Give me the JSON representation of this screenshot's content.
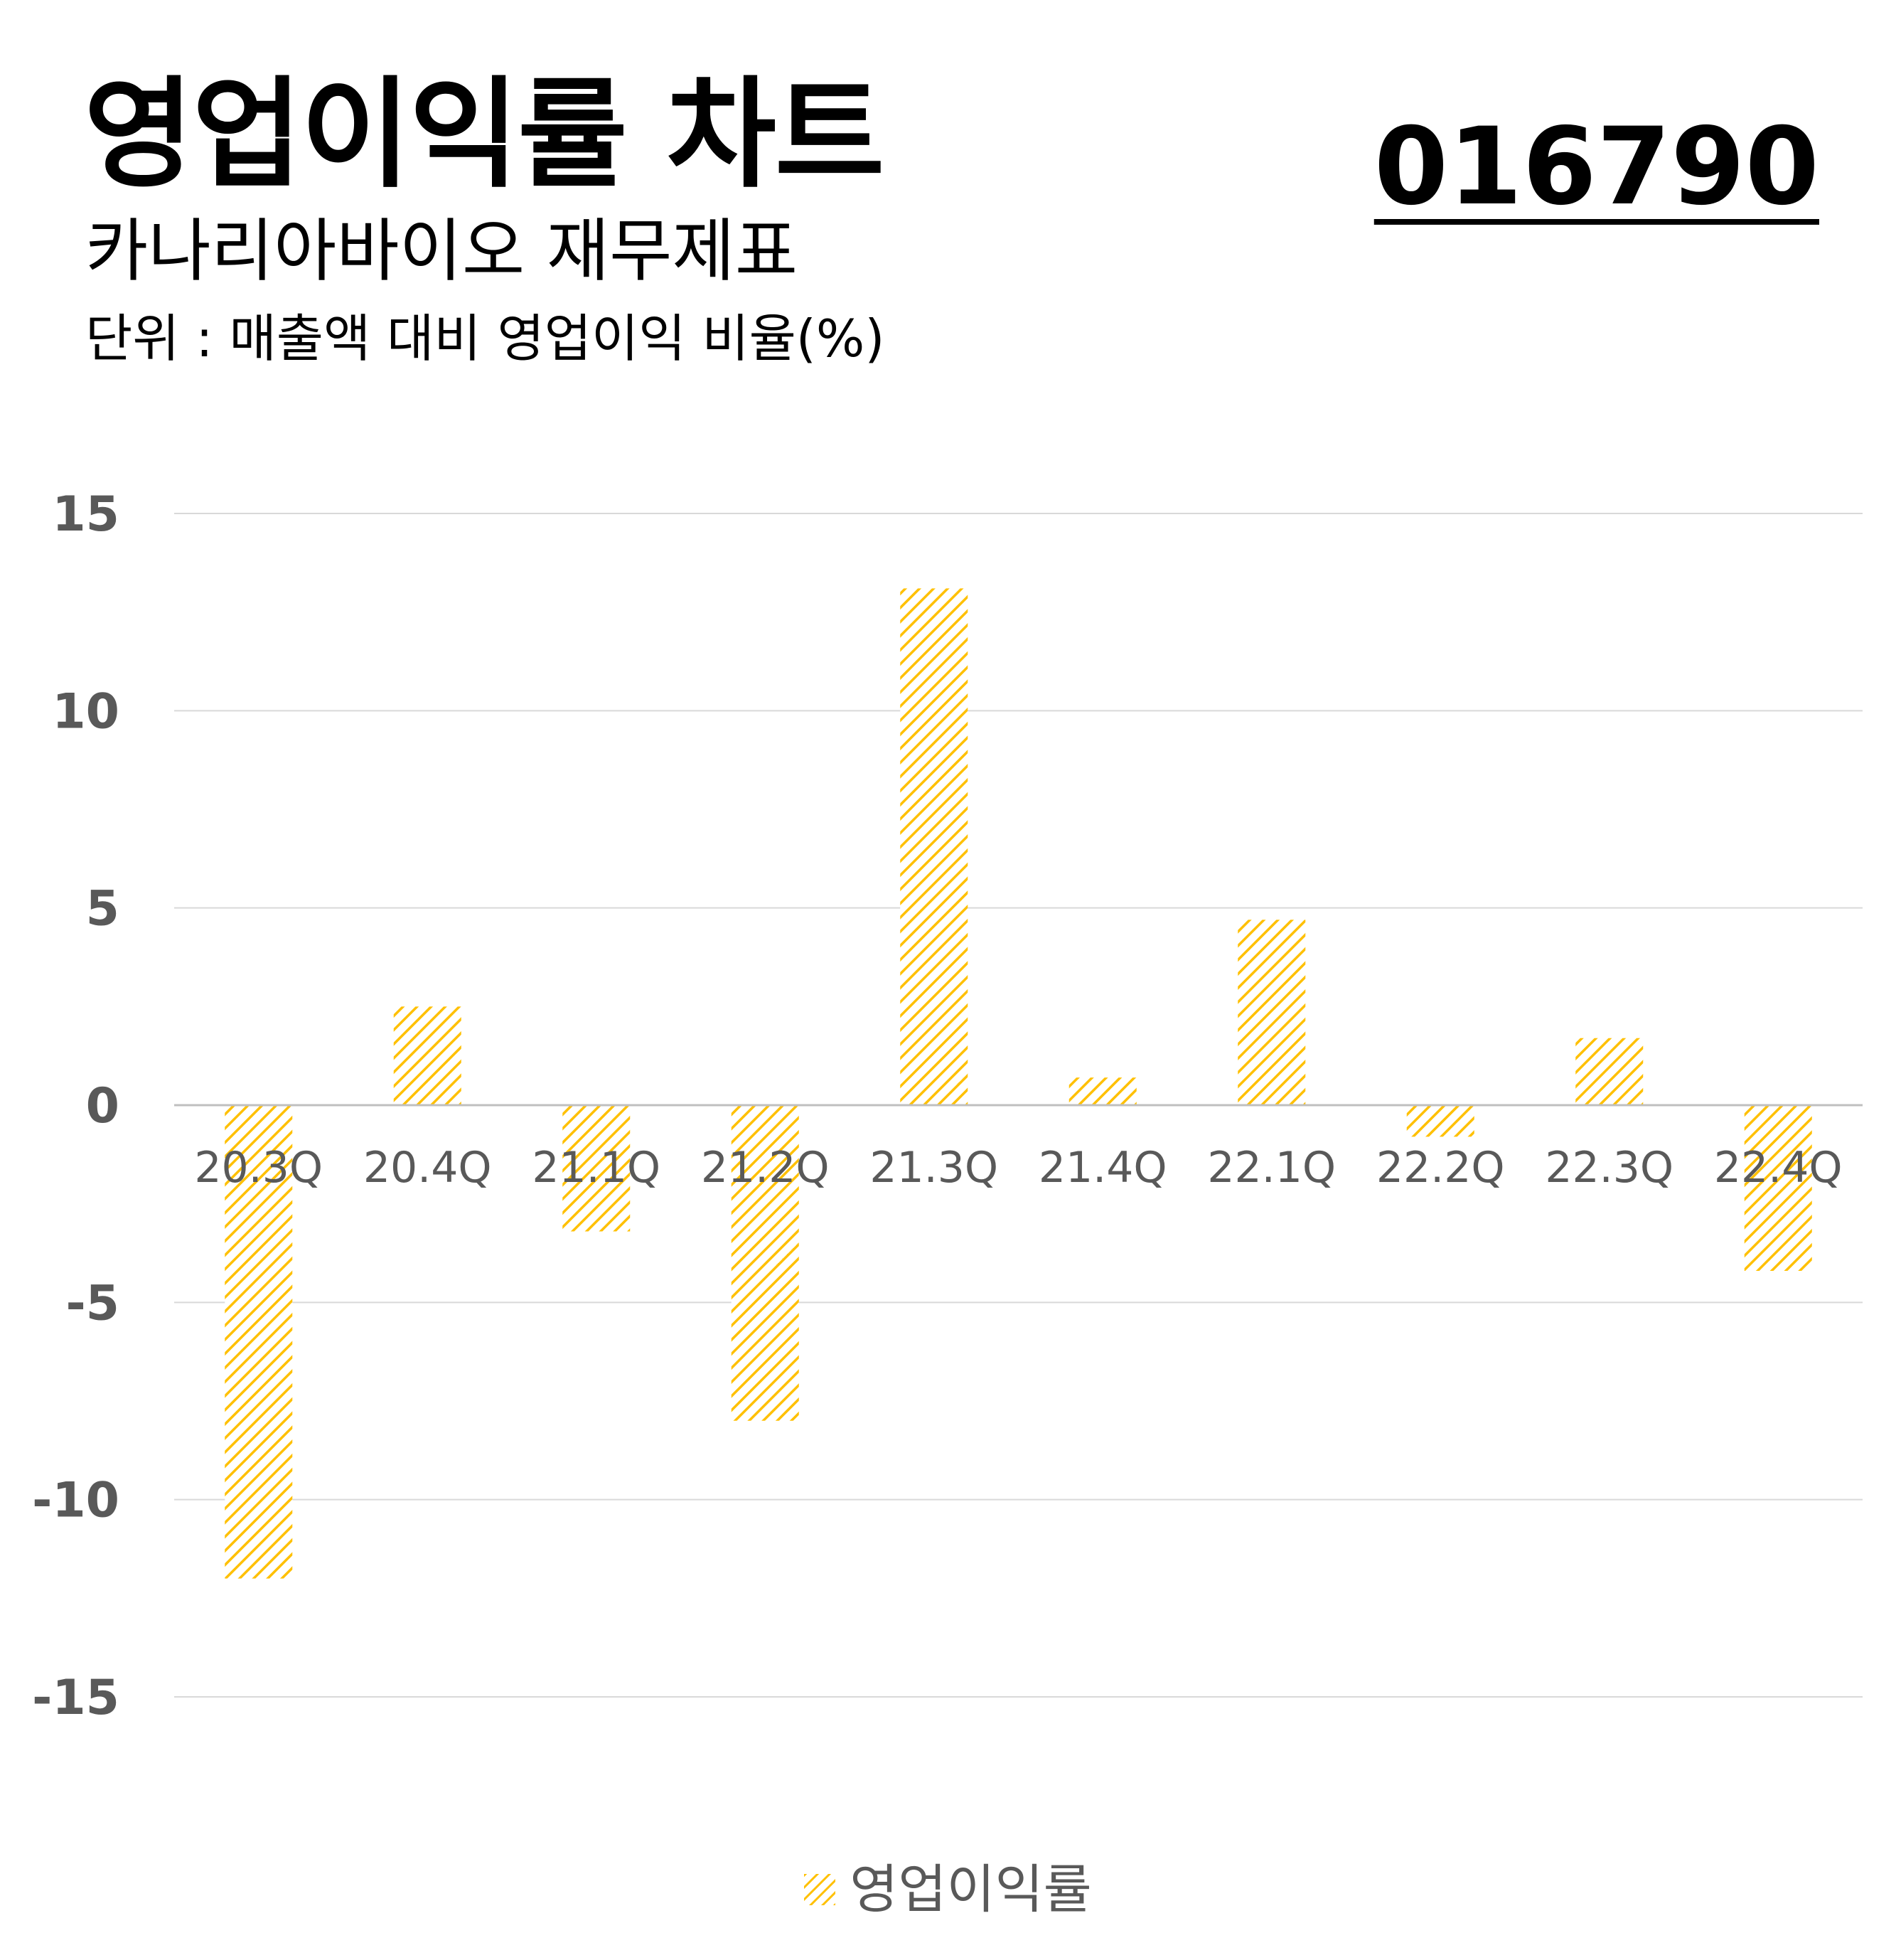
{
  "header": {
    "title": "영업이익률 차트",
    "subtitle": "카나리아바이오 재무제표",
    "unit": "단위 : 매출액 대비 영업이익 비율(%)",
    "stock_code": "016790"
  },
  "colors": {
    "bar": "#FFC000",
    "gridline": "#D9D9D9",
    "axis_text": "#595959",
    "zero_line": "#BFBFBF"
  },
  "chart_data": {
    "type": "bar",
    "categories": [
      "20.3Q",
      "20.4Q",
      "21.1Q",
      "21.2Q",
      "21.3Q",
      "21.4Q",
      "22.1Q",
      "22.2Q",
      "22.3Q",
      "22.4Q"
    ],
    "series": [
      {
        "name": "영업이익률",
        "values": [
          -12.0,
          2.5,
          -3.2,
          -8.0,
          13.1,
          0.7,
          4.7,
          -0.8,
          1.7,
          -4.2
        ]
      }
    ],
    "ylim": [
      -15,
      15
    ],
    "yticks": [
      15,
      10,
      5,
      0,
      -5,
      -10,
      -15
    ],
    "grid": true,
    "legend": "bottom",
    "bar_fill": "diagonal-hatch"
  }
}
